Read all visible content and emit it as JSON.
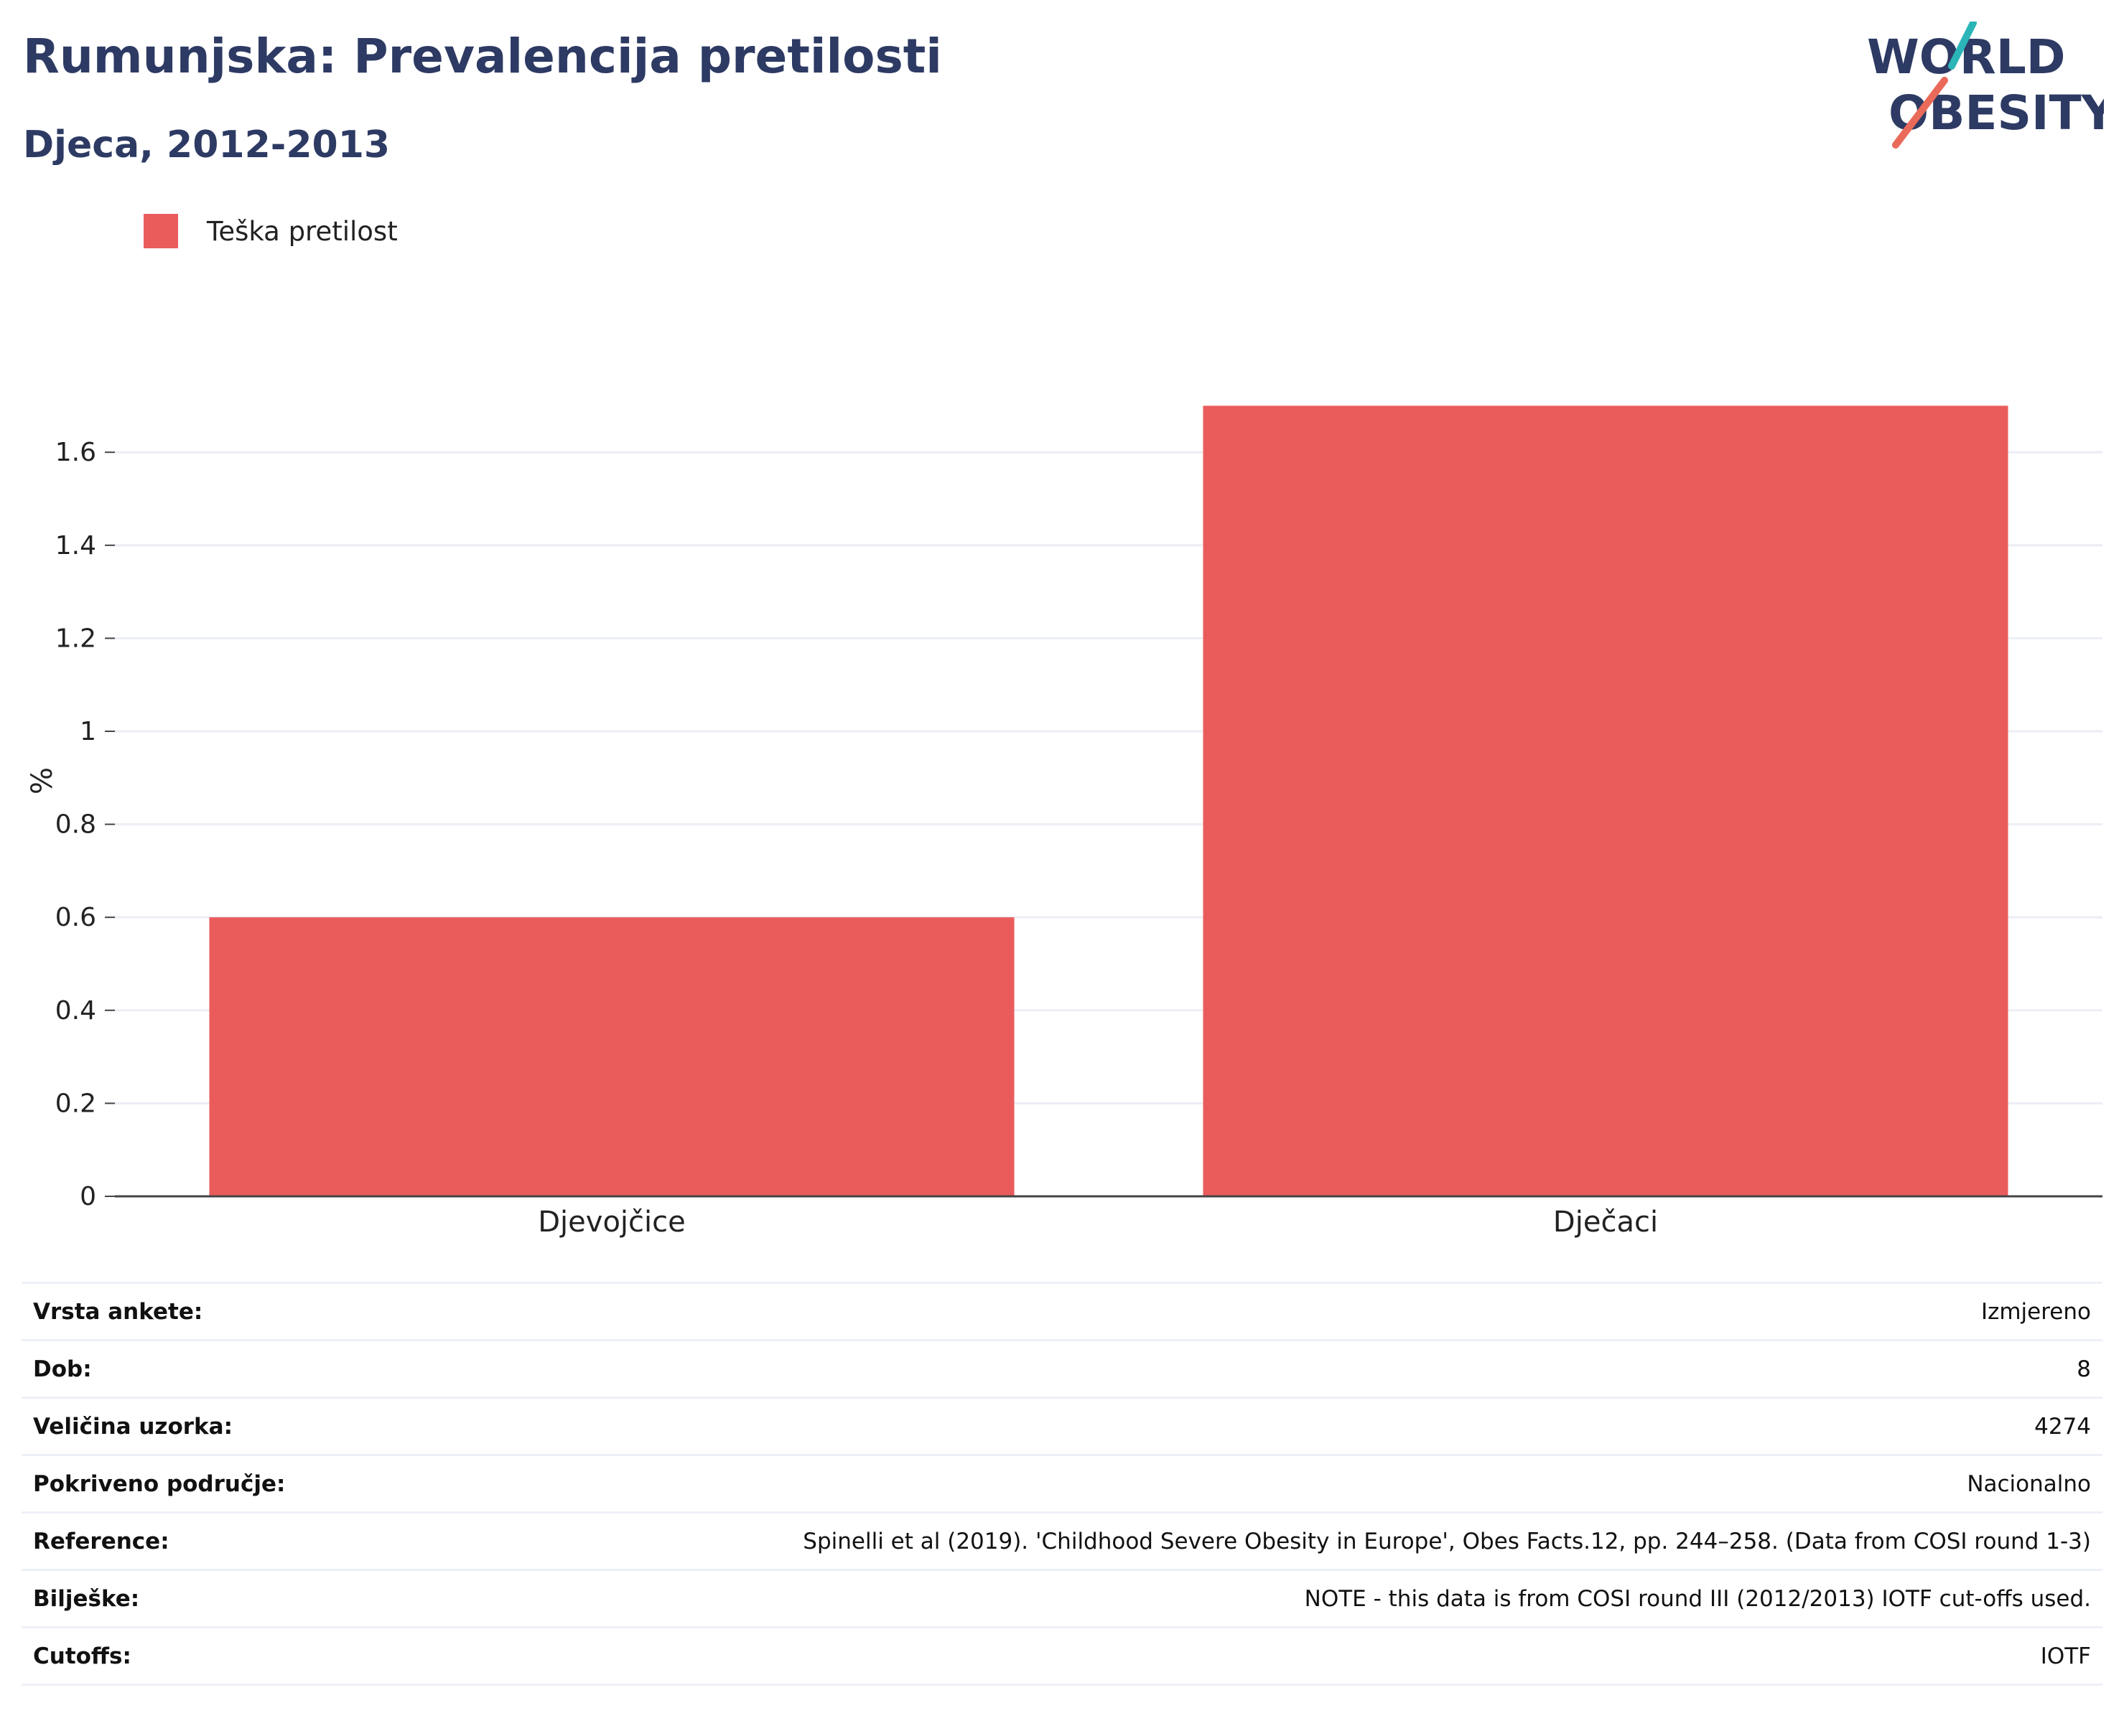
{
  "header": {
    "title": "Rumunjska: Prevalencija pretilosti",
    "subtitle": "Djeca, 2012-2013"
  },
  "logo": {
    "line1": "WORLD",
    "line2": "OBESITY"
  },
  "colors": {
    "bar": "#ea5c5c",
    "title": "#2d3a63",
    "logo_teal": "#2cb5b8",
    "logo_coral": "#ea6a5a"
  },
  "chart_data": {
    "type": "bar",
    "categories": [
      "Djevojčice",
      "Dječaci"
    ],
    "series": [
      {
        "name": "Teška pretilost",
        "values": [
          0.6,
          1.7
        ]
      }
    ],
    "ylabel": "%",
    "ylim": [
      0,
      1.7
    ],
    "yticks": [
      0,
      0.2,
      0.4,
      0.6,
      0.8,
      1,
      1.2,
      1.4,
      1.6
    ],
    "grid": true,
    "legend": "top-left"
  },
  "info": [
    {
      "key": "Vrsta ankete:",
      "value": "Izmjereno"
    },
    {
      "key": "Dob:",
      "value": "8"
    },
    {
      "key": "Veličina uzorka:",
      "value": "4274"
    },
    {
      "key": "Pokriveno područje:",
      "value": "Nacionalno"
    },
    {
      "key": "Reference:",
      "value": "Spinelli et al (2019). 'Childhood Severe Obesity in Europe', Obes Facts.12, pp. 244–258. (Data from COSI round 1-3)"
    },
    {
      "key": "Bilješke:",
      "value": "NOTE - this data is from COSI round III (2012/2013) IOTF cut-offs used."
    },
    {
      "key": "Cutoffs:",
      "value": "IOTF"
    }
  ]
}
